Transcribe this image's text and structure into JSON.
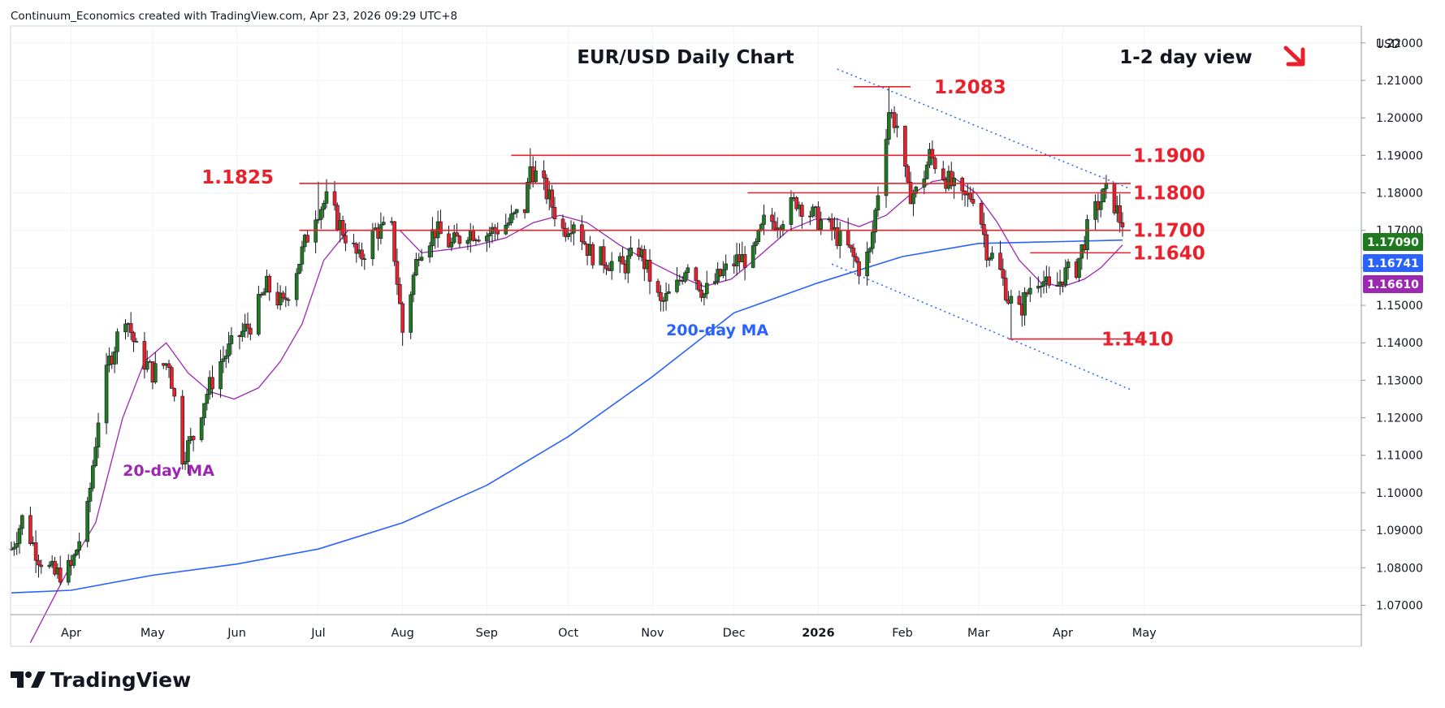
{
  "attribution": "Continuum_Economics created with TradingView.com, Apr 23, 2026 09:29 UTC+8",
  "currency": "USD",
  "brand": "TradingView",
  "colors": {
    "up": "#1f7a1f",
    "down": "#e8212d",
    "ma20": "#9c27b0",
    "ma200": "#2962ff",
    "level": "#e8212d",
    "grid": "#f0f3fa"
  },
  "chart_data": {
    "type": "candlestick",
    "title": "EUR/USD Daily Chart",
    "subtitle": "1-2 day view",
    "direction_arrow": "down-right",
    "ylim": [
      1.0675,
      1.2245
    ],
    "y_ticks": [
      "1.22000",
      "1.21000",
      "1.20000",
      "1.19000",
      "1.18000",
      "1.17000",
      "1.16000",
      "1.15000",
      "1.14000",
      "1.13000",
      "1.12000",
      "1.11000",
      "1.10000",
      "1.09000",
      "1.08000",
      "1.07000"
    ],
    "x_ticks": [
      {
        "label": "Apr",
        "date": "2025-04-01"
      },
      {
        "label": "May",
        "date": "2025-05-01"
      },
      {
        "label": "Jun",
        "date": "2025-06-01"
      },
      {
        "label": "Jul",
        "date": "2025-07-01"
      },
      {
        "label": "Aug",
        "date": "2025-08-01"
      },
      {
        "label": "Sep",
        "date": "2025-09-01"
      },
      {
        "label": "Oct",
        "date": "2025-10-01"
      },
      {
        "label": "Nov",
        "date": "2025-11-01"
      },
      {
        "label": "Dec",
        "date": "2025-12-01"
      },
      {
        "label": "2026",
        "date": "2026-01-01"
      },
      {
        "label": "Feb",
        "date": "2026-02-01"
      },
      {
        "label": "Mar",
        "date": "2026-03-01"
      },
      {
        "label": "Apr",
        "date": "2026-04-01"
      },
      {
        "label": "May",
        "date": "2026-05-01"
      }
    ],
    "price_path": [
      [
        "2025-03-10",
        1.085
      ],
      [
        "2025-03-14",
        1.093
      ],
      [
        "2025-03-20",
        1.083
      ],
      [
        "2025-03-26",
        1.078
      ],
      [
        "2025-04-01",
        1.08
      ],
      [
        "2025-04-07",
        1.095
      ],
      [
        "2025-04-11",
        1.12
      ],
      [
        "2025-04-15",
        1.135
      ],
      [
        "2025-04-21",
        1.148
      ],
      [
        "2025-04-25",
        1.138
      ],
      [
        "2025-05-01",
        1.132
      ],
      [
        "2025-05-07",
        1.135
      ],
      [
        "2025-05-12",
        1.11
      ],
      [
        "2025-05-16",
        1.115
      ],
      [
        "2025-05-20",
        1.125
      ],
      [
        "2025-05-26",
        1.135
      ],
      [
        "2025-06-02",
        1.142
      ],
      [
        "2025-06-06",
        1.145
      ],
      [
        "2025-06-12",
        1.155
      ],
      [
        "2025-06-18",
        1.15
      ],
      [
        "2025-06-24",
        1.162
      ],
      [
        "2025-06-30",
        1.175
      ],
      [
        "2025-07-04",
        1.178
      ],
      [
        "2025-07-10",
        1.17
      ],
      [
        "2025-07-16",
        1.162
      ],
      [
        "2025-07-22",
        1.17
      ],
      [
        "2025-07-28",
        1.17
      ],
      [
        "2025-08-01",
        1.143
      ],
      [
        "2025-08-07",
        1.165
      ],
      [
        "2025-08-13",
        1.17
      ],
      [
        "2025-08-19",
        1.166
      ],
      [
        "2025-08-25",
        1.17
      ],
      [
        "2025-09-01",
        1.169
      ],
      [
        "2025-09-09",
        1.172
      ],
      [
        "2025-09-15",
        1.176
      ],
      [
        "2025-09-17",
        1.187
      ],
      [
        "2025-09-23",
        1.18
      ],
      [
        "2025-09-29",
        1.17
      ],
      [
        "2025-10-03",
        1.173
      ],
      [
        "2025-10-09",
        1.164
      ],
      [
        "2025-10-15",
        1.162
      ],
      [
        "2025-10-21",
        1.16
      ],
      [
        "2025-10-27",
        1.165
      ],
      [
        "2025-11-04",
        1.15
      ],
      [
        "2025-11-10",
        1.155
      ],
      [
        "2025-11-14",
        1.162
      ],
      [
        "2025-11-20",
        1.153
      ],
      [
        "2025-11-26",
        1.158
      ],
      [
        "2025-12-02",
        1.162
      ],
      [
        "2025-12-08",
        1.163
      ],
      [
        "2025-12-12",
        1.172
      ],
      [
        "2025-12-18",
        1.173
      ],
      [
        "2025-12-24",
        1.178
      ],
      [
        "2025-12-30",
        1.174
      ],
      [
        "2026-01-06",
        1.17
      ],
      [
        "2026-01-12",
        1.165
      ],
      [
        "2026-01-16",
        1.16
      ],
      [
        "2026-01-20",
        1.164
      ],
      [
        "2026-01-24",
        1.186
      ],
      [
        "2026-01-27",
        1.202
      ],
      [
        "2026-01-30",
        1.198
      ],
      [
        "2026-02-03",
        1.18
      ],
      [
        "2026-02-07",
        1.18
      ],
      [
        "2026-02-11",
        1.19
      ],
      [
        "2026-02-17",
        1.184
      ],
      [
        "2026-02-23",
        1.178
      ],
      [
        "2026-02-28",
        1.18
      ],
      [
        "2026-03-04",
        1.165
      ],
      [
        "2026-03-08",
        1.161
      ],
      [
        "2026-03-12",
        1.152
      ],
      [
        "2026-03-16",
        1.148
      ],
      [
        "2026-03-20",
        1.155
      ],
      [
        "2026-03-24",
        1.158
      ],
      [
        "2026-03-28",
        1.152
      ],
      [
        "2026-04-01",
        1.158
      ],
      [
        "2026-04-06",
        1.16
      ],
      [
        "2026-04-10",
        1.17
      ],
      [
        "2026-04-14",
        1.177
      ],
      [
        "2026-04-17",
        1.18
      ],
      [
        "2026-04-20",
        1.177
      ],
      [
        "2026-04-23",
        1.1709
      ]
    ],
    "ma20_path": [
      [
        "2025-03-17",
        1.06
      ],
      [
        "2025-04-01",
        1.081
      ],
      [
        "2025-04-10",
        1.092
      ],
      [
        "2025-04-20",
        1.12
      ],
      [
        "2025-04-28",
        1.135
      ],
      [
        "2025-05-06",
        1.14
      ],
      [
        "2025-05-14",
        1.132
      ],
      [
        "2025-05-22",
        1.127
      ],
      [
        "2025-05-31",
        1.125
      ],
      [
        "2025-06-09",
        1.128
      ],
      [
        "2025-06-17",
        1.135
      ],
      [
        "2025-06-25",
        1.145
      ],
      [
        "2025-07-03",
        1.162
      ],
      [
        "2025-07-12",
        1.17
      ],
      [
        "2025-07-22",
        1.17
      ],
      [
        "2025-07-31",
        1.17
      ],
      [
        "2025-08-08",
        1.164
      ],
      [
        "2025-08-19",
        1.165
      ],
      [
        "2025-08-28",
        1.166
      ],
      [
        "2025-09-08",
        1.168
      ],
      [
        "2025-09-18",
        1.172
      ],
      [
        "2025-09-28",
        1.174
      ],
      [
        "2025-10-08",
        1.172
      ],
      [
        "2025-10-20",
        1.166
      ],
      [
        "2025-10-30",
        1.162
      ],
      [
        "2025-11-10",
        1.158
      ],
      [
        "2025-11-20",
        1.155
      ],
      [
        "2025-11-30",
        1.157
      ],
      [
        "2025-12-10",
        1.163
      ],
      [
        "2025-12-21",
        1.17
      ],
      [
        "2025-12-31",
        1.173
      ],
      [
        "2026-01-08",
        1.173
      ],
      [
        "2026-01-16",
        1.171
      ],
      [
        "2026-01-26",
        1.174
      ],
      [
        "2026-02-03",
        1.179
      ],
      [
        "2026-02-12",
        1.183
      ],
      [
        "2026-02-20",
        1.184
      ],
      [
        "2026-02-28",
        1.18
      ],
      [
        "2026-03-08",
        1.172
      ],
      [
        "2026-03-16",
        1.162
      ],
      [
        "2026-03-24",
        1.156
      ],
      [
        "2026-04-01",
        1.155
      ],
      [
        "2026-04-09",
        1.157
      ],
      [
        "2026-04-15",
        1.16
      ],
      [
        "2026-04-23",
        1.1661
      ]
    ],
    "ma200_path": [
      [
        "2025-03-10",
        1.0733
      ],
      [
        "2025-04-01",
        1.074
      ],
      [
        "2025-05-01",
        1.078
      ],
      [
        "2025-06-01",
        1.081
      ],
      [
        "2025-07-01",
        1.085
      ],
      [
        "2025-08-01",
        1.092
      ],
      [
        "2025-09-01",
        1.102
      ],
      [
        "2025-10-01",
        1.115
      ],
      [
        "2025-11-01",
        1.131
      ],
      [
        "2025-12-01",
        1.148
      ],
      [
        "2026-01-01",
        1.156
      ],
      [
        "2026-02-01",
        1.163
      ],
      [
        "2026-03-01",
        1.1665
      ],
      [
        "2026-04-01",
        1.167
      ],
      [
        "2026-04-23",
        1.1674
      ]
    ],
    "lows": {
      "2025-05-12": 1.1065,
      "2025-08-01": 1.1392,
      "2026-01-19": 1.1575,
      "2026-03-13": 1.141
    },
    "highs": {
      "2025-07-01": 1.183,
      "2025-09-17": 1.1919,
      "2026-01-27": 1.2083,
      "2026-04-17": 1.1848
    },
    "horizontal_levels": [
      {
        "label": "1.2083",
        "value": 1.2083,
        "from": "2026-01-14",
        "to": "2026-02-04"
      },
      {
        "label": "1.1900",
        "value": 1.19,
        "from": "2025-09-10",
        "to": "2026-04-26"
      },
      {
        "label": "1.1825",
        "value": 1.1825,
        "from": "2025-06-24",
        "to": "2026-04-26"
      },
      {
        "label": "1.1800",
        "value": 1.18,
        "from": "2025-12-06",
        "to": "2026-04-26"
      },
      {
        "label": "1.1700",
        "value": 1.17,
        "from": "2025-06-24",
        "to": "2026-04-26"
      },
      {
        "label": "1.1640",
        "value": 1.164,
        "from": "2026-03-20",
        "to": "2026-04-26"
      },
      {
        "label": "1.1410",
        "value": 1.141,
        "from": "2026-03-12",
        "to": "2026-04-30"
      }
    ],
    "trend_lines": [
      {
        "from": [
          "2026-01-08",
          1.213
        ],
        "to": [
          "2026-04-26",
          1.181
        ]
      },
      {
        "from": [
          "2026-01-06",
          1.161
        ],
        "to": [
          "2026-04-26",
          1.1275
        ]
      }
    ],
    "annotations": [
      {
        "text": "20-day MA",
        "x": "2025-04-20",
        "y": 1.1045
      },
      {
        "text": "200-day MA",
        "x": "2025-11-06",
        "y": 1.142
      }
    ],
    "price_labels": [
      {
        "text": "1.17090",
        "value": 1.1709,
        "color": "#1f7a1f"
      },
      {
        "text": "1.16741",
        "value": 1.16741,
        "color": "#2962ff"
      },
      {
        "text": "1.16610",
        "value": 1.1661,
        "color": "#9c27b0"
      }
    ]
  }
}
